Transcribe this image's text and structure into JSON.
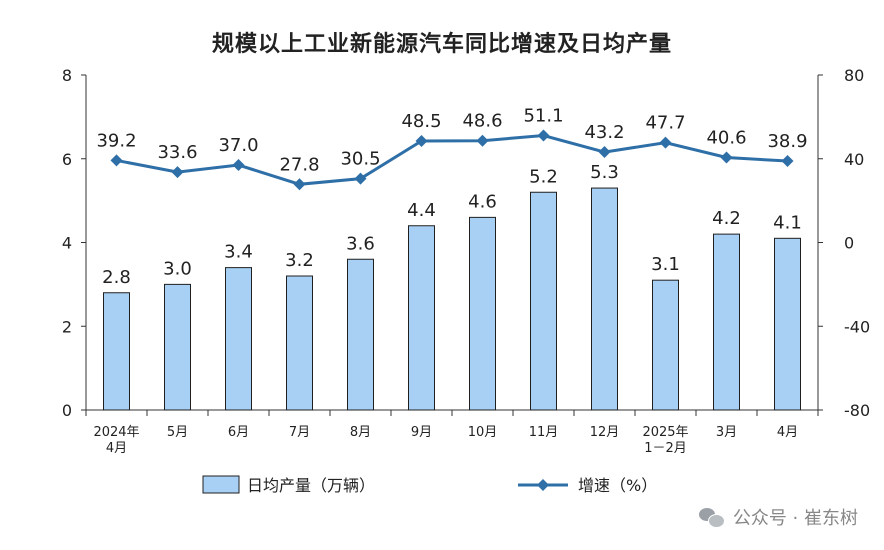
{
  "page": {
    "title": "规模以上工业新能源汽车同比增速及日均产量",
    "watermark": {
      "text": "公众号 · 崔东树",
      "icon": "wechat-icon"
    }
  },
  "chart_data": {
    "type": "bar",
    "title": "规模以上工业新能源汽车同比增速及日均产量",
    "categories": [
      "2024年\n4月",
      "5月",
      "6月",
      "7月",
      "8月",
      "9月",
      "10月",
      "11月",
      "12月",
      "2025年\n1－2月",
      "3月",
      "4月"
    ],
    "series": [
      {
        "name": "日均产量（万辆）",
        "type": "bar",
        "axis": "left",
        "color": "#a8d0f5",
        "border": "#1f1f1f",
        "values": [
          2.8,
          3.0,
          3.4,
          3.2,
          3.6,
          4.4,
          4.6,
          5.2,
          5.3,
          3.1,
          4.2,
          4.1
        ],
        "labels": [
          "2.8",
          "3.0",
          "3.4",
          "3.2",
          "3.6",
          "4.4",
          "4.6",
          "5.2",
          "5.3",
          "3.1",
          "4.2",
          "4.1"
        ]
      },
      {
        "name": "增速（%）",
        "type": "line",
        "axis": "right",
        "color": "#2e6fa7",
        "values": [
          39.2,
          33.6,
          37.0,
          27.8,
          30.5,
          48.5,
          48.6,
          51.1,
          43.2,
          47.7,
          40.6,
          38.9
        ],
        "labels": [
          "39.2",
          "33.6",
          "37.0",
          "27.8",
          "30.5",
          "48.5",
          "48.6",
          "51.1",
          "43.2",
          "47.7",
          "40.6",
          "38.9"
        ]
      }
    ],
    "y_left": {
      "min": 0,
      "max": 8,
      "ticks": [
        0,
        2,
        4,
        6,
        8
      ]
    },
    "y_right": {
      "min": -80,
      "max": 80,
      "ticks": [
        -80,
        -40,
        0,
        40,
        80
      ]
    },
    "grid": false,
    "legend": "bottom"
  }
}
